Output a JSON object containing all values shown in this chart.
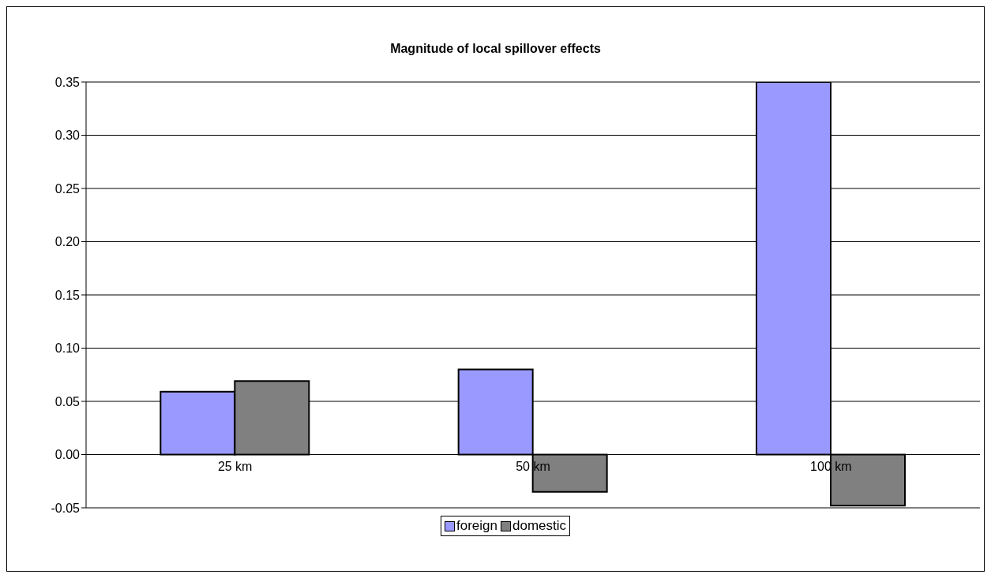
{
  "chart_data": {
    "type": "bar",
    "title": "Magnitude of local spillover effects",
    "categories": [
      "25 km",
      "50 km",
      "100 km"
    ],
    "series": [
      {
        "name": "foreign",
        "color": "#9999ff",
        "values": [
          0.059,
          0.08,
          0.35
        ]
      },
      {
        "name": "domestic",
        "color": "#808080",
        "values": [
          0.069,
          -0.035,
          -0.048
        ]
      }
    ],
    "ylim": [
      -0.05,
      0.35
    ],
    "yticks": [
      {
        "value": -0.05,
        "label": "-0.05"
      },
      {
        "value": 0,
        "label": "0.00"
      },
      {
        "value": 0.05,
        "label": "0.05"
      },
      {
        "value": 0.1,
        "label": "0.10"
      },
      {
        "value": 0.15,
        "label": "0.15"
      },
      {
        "value": 0.2,
        "label": "0.20"
      },
      {
        "value": 0.25,
        "label": "0.25"
      },
      {
        "value": 0.3,
        "label": "0.30"
      },
      {
        "value": 0.35,
        "label": "0.35"
      }
    ],
    "grid": "y",
    "legend": "bottom"
  }
}
